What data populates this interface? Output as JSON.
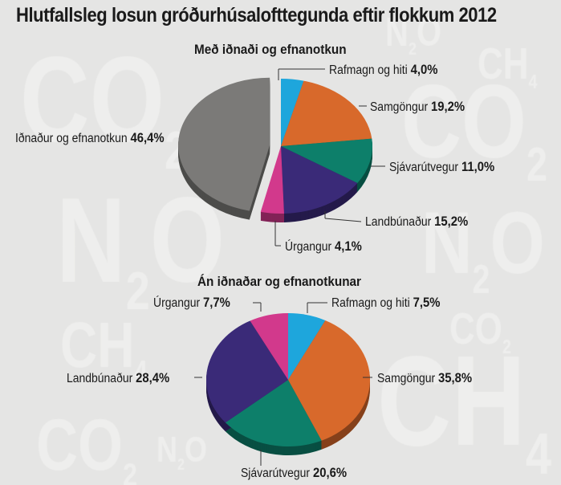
{
  "title": "Hlutfallsleg losun gróðurhúsalofttegunda eftir flokkum 2012",
  "watermark": [
    "CO2",
    "N2O",
    "CH4"
  ],
  "chart_data": [
    {
      "type": "pie",
      "title": "Með iðnaði og efnanotkun",
      "slices": [
        {
          "label": "Rafmagn og hiti",
          "value": 4.0,
          "display": "4,0%",
          "color": "#1ea6dc"
        },
        {
          "label": "Samgöngur",
          "value": 19.2,
          "display": "19,2%",
          "color": "#d8692b"
        },
        {
          "label": "Sjávarútvegur",
          "value": 11.0,
          "display": "11,0%",
          "color": "#0d7f6a"
        },
        {
          "label": "Landbúnaður",
          "value": 15.2,
          "display": "15,2%",
          "color": "#3a2a78"
        },
        {
          "label": "Úrgangur",
          "value": 4.1,
          "display": "4,1%",
          "color": "#d2398c"
        },
        {
          "label": "Iðnaður og efnanotkun",
          "value": 46.4,
          "display": "46,4%",
          "color": "#7b7a78",
          "exploded": true
        }
      ]
    },
    {
      "type": "pie",
      "title": "Án iðnaðar og efnanotkunar",
      "slices": [
        {
          "label": "Rafmagn og hiti",
          "value": 7.5,
          "display": "7,5%",
          "color": "#1ea6dc"
        },
        {
          "label": "Samgöngur",
          "value": 35.8,
          "display": "35,8%",
          "color": "#d8692b"
        },
        {
          "label": "Sjávarútvegur",
          "value": 20.6,
          "display": "20,6%",
          "color": "#0d7f6a"
        },
        {
          "label": "Landbúnaður",
          "value": 28.4,
          "display": "28,4%",
          "color": "#3a2a78"
        },
        {
          "label": "Úrgangur",
          "value": 7.7,
          "display": "7,7%",
          "color": "#d2398c"
        }
      ]
    }
  ]
}
